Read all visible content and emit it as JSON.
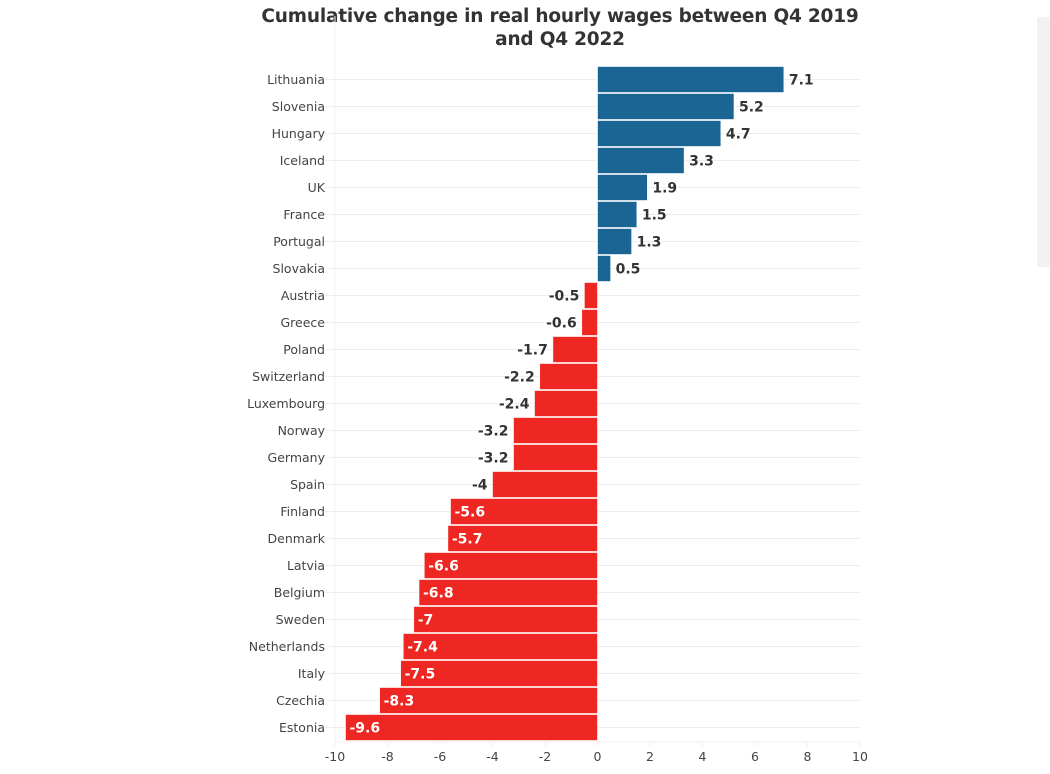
{
  "chart_data": {
    "type": "bar",
    "orientation": "horizontal",
    "title": "Cumulative change in real hourly wages between Q4 2019 and Q4 2022",
    "xlabel": "",
    "ylabel": "",
    "xlim": [
      -10,
      10
    ],
    "x_ticks": [
      -10,
      -8,
      -6,
      -4,
      -2,
      0,
      2,
      4,
      6,
      8,
      10
    ],
    "grid": true,
    "legend": "none",
    "colors": {
      "positive": "#1a6594",
      "negative": "#ee2722"
    },
    "categories": [
      "Lithuania",
      "Slovenia",
      "Hungary",
      "Iceland",
      "UK",
      "France",
      "Portugal",
      "Slovakia",
      "Austria",
      "Greece",
      "Poland",
      "Switzerland",
      "Luxembourg",
      "Norway",
      "Germany",
      "Spain",
      "Finland",
      "Denmark",
      "Latvia",
      "Belgium",
      "Sweden",
      "Netherlands",
      "Italy",
      "Czechia",
      "Estonia"
    ],
    "values": [
      7.1,
      5.2,
      4.7,
      3.3,
      1.9,
      1.5,
      1.3,
      0.5,
      -0.5,
      -0.6,
      -1.7,
      -2.2,
      -2.4,
      -3.2,
      -3.2,
      -4,
      -5.6,
      -5.7,
      -6.6,
      -6.8,
      -7,
      -7.4,
      -7.5,
      -8.3,
      -9.6
    ],
    "data_labels": [
      "7.1",
      "5.2",
      "4.7",
      "3.3",
      "1.9",
      "1.5",
      "1.3",
      "0.5",
      "-0.5",
      "-0.6",
      "-1.7",
      "-2.2",
      "-2.4",
      "-3.2",
      "-3.2",
      "-4",
      "-5.6",
      "-5.7",
      "-6.6",
      "-6.8",
      "-7",
      "-7.4",
      "-7.5",
      "-8.3",
      "-9.6"
    ]
  }
}
